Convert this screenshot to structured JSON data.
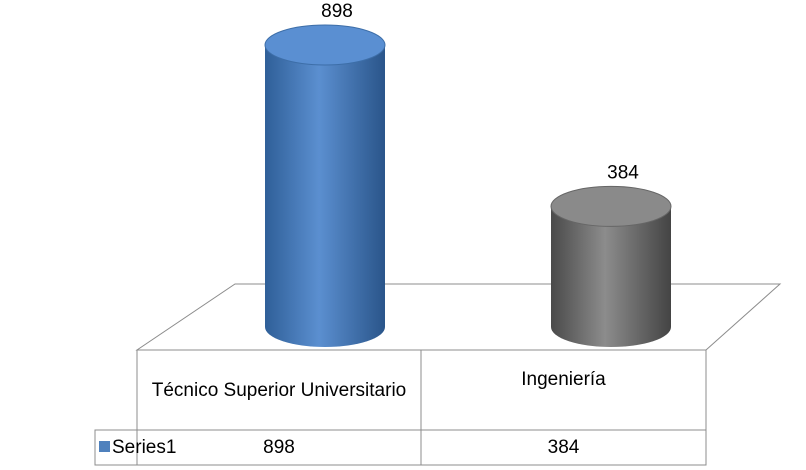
{
  "chart_data": {
    "type": "cylinder",
    "categories": [
      "Técnico Superior Universitario",
      "Ingeniería"
    ],
    "series": [
      {
        "name": "Series1",
        "color": "#4f81bd",
        "values": [
          898,
          384
        ]
      }
    ],
    "point_colors": [
      "#4f81bd",
      "#7f7f7f"
    ],
    "data_table": true
  }
}
